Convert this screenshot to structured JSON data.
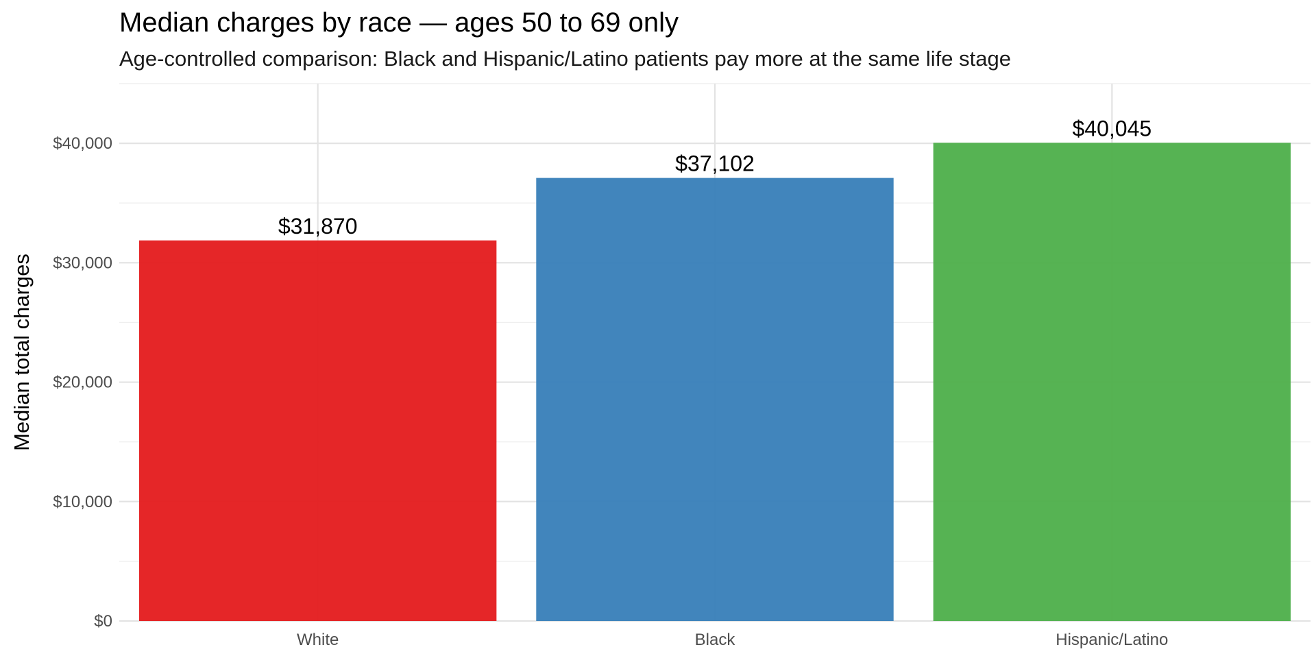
{
  "chart_data": {
    "type": "bar",
    "title": "Median charges by race — ages 50 to 69 only",
    "subtitle": "Age-controlled comparison: Black and Hispanic/Latino patients pay more at the same life stage",
    "xlabel": "",
    "ylabel": "Median total charges",
    "categories": [
      "White",
      "Black",
      "Hispanic/Latino"
    ],
    "values": [
      31870,
      37102,
      40045
    ],
    "value_labels": [
      "$31,870",
      "$37,102",
      "$40,045"
    ],
    "bar_colors": [
      "#E41A1C",
      "#377EB8",
      "#4DAF4A"
    ],
    "bar_opacity": 0.95,
    "ylim": [
      0,
      45000
    ],
    "y_ticks": [
      0,
      10000,
      20000,
      30000,
      40000
    ],
    "y_tick_labels": [
      "$0",
      "$10,000",
      "$20,000",
      "$30,000",
      "$40,000"
    ],
    "grid": true,
    "legend": "none"
  }
}
